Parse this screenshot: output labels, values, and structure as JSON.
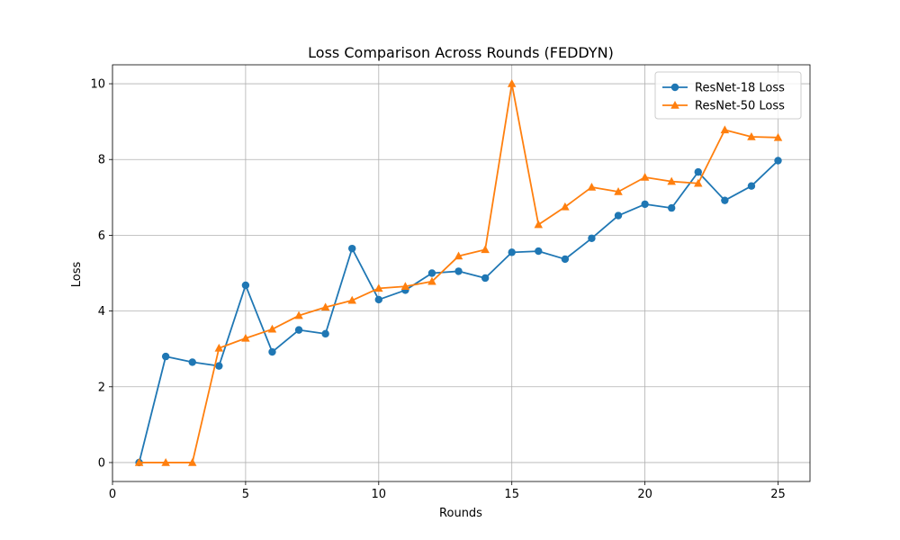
{
  "chart_data": {
    "type": "line",
    "title": "Loss Comparison Across Rounds (FEDDYN)",
    "xlabel": "Rounds",
    "ylabel": "Loss",
    "xlim": [
      0,
      26.2
    ],
    "ylim": [
      -0.5,
      10.5
    ],
    "xticks": [
      0,
      5,
      10,
      15,
      20,
      25
    ],
    "yticks": [
      0,
      2,
      4,
      6,
      8,
      10
    ],
    "grid": true,
    "legend_position": "top-right",
    "x": [
      1,
      2,
      3,
      4,
      5,
      6,
      7,
      8,
      9,
      10,
      11,
      12,
      13,
      14,
      15,
      16,
      17,
      18,
      19,
      20,
      21,
      22,
      23,
      24,
      25
    ],
    "series": [
      {
        "name": "ResNet-18 Loss",
        "color": "#1f77b4",
        "marker": "circle",
        "values": [
          0.0,
          2.8,
          2.65,
          2.55,
          4.68,
          2.92,
          3.5,
          3.4,
          5.65,
          4.3,
          4.55,
          5.0,
          5.05,
          4.87,
          5.55,
          5.58,
          5.37,
          5.92,
          6.52,
          6.82,
          6.72,
          7.67,
          6.92,
          7.3,
          7.97
        ]
      },
      {
        "name": "ResNet-50 Loss",
        "color": "#ff7f0e",
        "marker": "triangle",
        "values": [
          0.0,
          0.0,
          0.0,
          3.02,
          3.28,
          3.52,
          3.88,
          4.1,
          4.28,
          4.6,
          4.65,
          4.78,
          5.45,
          5.62,
          10.0,
          6.28,
          6.75,
          7.27,
          7.15,
          7.53,
          7.42,
          7.37,
          8.78,
          8.6,
          8.58
        ]
      }
    ]
  }
}
